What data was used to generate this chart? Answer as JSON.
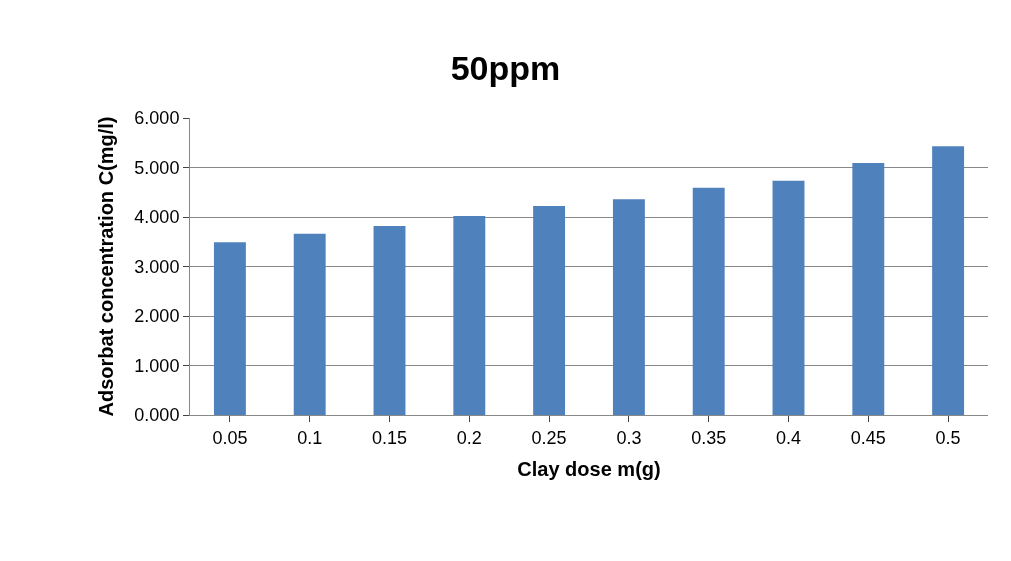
{
  "chart_data": {
    "type": "bar",
    "title": "50ppm",
    "xlabel": "Clay dose m(g)",
    "ylabel": "Adsorbat concentration C(mg/l)",
    "categories": [
      "0.05",
      "0.1",
      "0.15",
      "0.2",
      "0.25",
      "0.3",
      "0.35",
      "0.4",
      "0.45",
      "0.5"
    ],
    "values": [
      3.49,
      3.66,
      3.82,
      4.02,
      4.22,
      4.36,
      4.59,
      4.73,
      5.09,
      5.43
    ],
    "color": "#4f81bd",
    "ylim": [
      0,
      6
    ],
    "yticks": [
      {
        "value": 0,
        "label": "0.000"
      },
      {
        "value": 1,
        "label": "1.000"
      },
      {
        "value": 2,
        "label": "2.000"
      },
      {
        "value": 3,
        "label": "3.000"
      },
      {
        "value": 4,
        "label": "4.000"
      },
      {
        "value": 5,
        "label": "5.000"
      },
      {
        "value": 6,
        "label": "6.000"
      }
    ],
    "grid": "y"
  }
}
